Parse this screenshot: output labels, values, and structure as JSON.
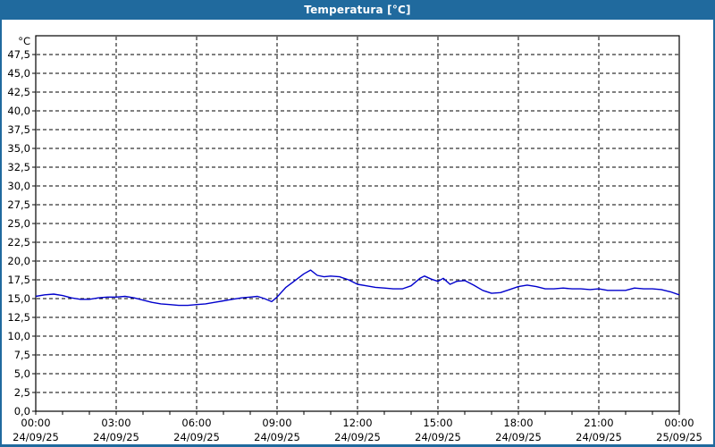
{
  "window": {
    "title": "Temperatura [°C]"
  },
  "colors": {
    "titlebar_bg": "#206a9e",
    "titlebar_text": "#ffffff",
    "window_border": "#206a9e",
    "plot_bg": "#ffffff",
    "line": "#0000cc",
    "grid": "#000000",
    "axis": "#000000",
    "label_text": "#000000"
  },
  "chart_data": {
    "type": "line",
    "title": "Temperatura [°C]",
    "unit_label": "°C",
    "ylim": [
      0,
      50
    ],
    "xlim_hours": [
      0,
      24
    ],
    "grid": "dashed",
    "legend": "none",
    "y_ticks": [
      {
        "v": 0,
        "label": "0,0"
      },
      {
        "v": 2.5,
        "label": "2,5"
      },
      {
        "v": 5,
        "label": "5,0"
      },
      {
        "v": 7.5,
        "label": "7,5"
      },
      {
        "v": 10,
        "label": "10,0"
      },
      {
        "v": 12.5,
        "label": "12,5"
      },
      {
        "v": 15,
        "label": "15,0"
      },
      {
        "v": 17.5,
        "label": "17,5"
      },
      {
        "v": 20,
        "label": "20,0"
      },
      {
        "v": 22.5,
        "label": "22,5"
      },
      {
        "v": 25,
        "label": "25,0"
      },
      {
        "v": 27.5,
        "label": "27,5"
      },
      {
        "v": 30,
        "label": "30,0"
      },
      {
        "v": 32.5,
        "label": "32,5"
      },
      {
        "v": 35,
        "label": "35,0"
      },
      {
        "v": 37.5,
        "label": "37,5"
      },
      {
        "v": 40,
        "label": "40,0"
      },
      {
        "v": 42.5,
        "label": "42,5"
      },
      {
        "v": 45,
        "label": "45,0"
      },
      {
        "v": 47.5,
        "label": "47,5"
      }
    ],
    "x_ticks": [
      {
        "h": 0,
        "time": "00:00",
        "date": "24/09/25"
      },
      {
        "h": 3,
        "time": "03:00",
        "date": "24/09/25"
      },
      {
        "h": 6,
        "time": "06:00",
        "date": "24/09/25"
      },
      {
        "h": 9,
        "time": "09:00",
        "date": "24/09/25"
      },
      {
        "h": 12,
        "time": "12:00",
        "date": "24/09/25"
      },
      {
        "h": 15,
        "time": "15:00",
        "date": "24/09/25"
      },
      {
        "h": 18,
        "time": "18:00",
        "date": "24/09/25"
      },
      {
        "h": 21,
        "time": "21:00",
        "date": "24/09/25"
      },
      {
        "h": 24,
        "time": "00:00",
        "date": "25/09/25"
      }
    ],
    "minor_x_tick_every_hours": 1,
    "series": [
      {
        "name": "Temperatura",
        "points": [
          [
            0,
            15.3
          ],
          [
            0.33,
            15.5
          ],
          [
            0.67,
            15.6
          ],
          [
            1,
            15.4
          ],
          [
            1.33,
            15.1
          ],
          [
            1.67,
            14.9
          ],
          [
            2,
            14.9
          ],
          [
            2.33,
            15.1
          ],
          [
            2.67,
            15.2
          ],
          [
            3,
            15.2
          ],
          [
            3.33,
            15.3
          ],
          [
            3.67,
            15.1
          ],
          [
            4,
            14.8
          ],
          [
            4.33,
            14.5
          ],
          [
            4.67,
            14.3
          ],
          [
            5,
            14.2
          ],
          [
            5.33,
            14.1
          ],
          [
            5.67,
            14.1
          ],
          [
            6,
            14.2
          ],
          [
            6.33,
            14.3
          ],
          [
            6.67,
            14.5
          ],
          [
            7,
            14.7
          ],
          [
            7.33,
            14.9
          ],
          [
            7.67,
            15.1
          ],
          [
            8,
            15.2
          ],
          [
            8.27,
            15.3
          ],
          [
            8.53,
            15.0
          ],
          [
            8.8,
            14.6
          ],
          [
            9,
            15.2
          ],
          [
            9.33,
            16.5
          ],
          [
            9.67,
            17.4
          ],
          [
            10,
            18.3
          ],
          [
            10.25,
            18.8
          ],
          [
            10.5,
            18.1
          ],
          [
            10.75,
            17.9
          ],
          [
            11,
            18.0
          ],
          [
            11.33,
            17.9
          ],
          [
            11.67,
            17.5
          ],
          [
            12,
            16.9
          ],
          [
            12.33,
            16.7
          ],
          [
            12.67,
            16.5
          ],
          [
            13,
            16.4
          ],
          [
            13.33,
            16.3
          ],
          [
            13.67,
            16.3
          ],
          [
            14,
            16.7
          ],
          [
            14.33,
            17.7
          ],
          [
            14.5,
            18.0
          ],
          [
            14.75,
            17.6
          ],
          [
            15,
            17.3
          ],
          [
            15.2,
            17.7
          ],
          [
            15.45,
            16.9
          ],
          [
            15.7,
            17.3
          ],
          [
            16,
            17.4
          ],
          [
            16.33,
            16.8
          ],
          [
            16.67,
            16.1
          ],
          [
            17,
            15.7
          ],
          [
            17.33,
            15.8
          ],
          [
            17.67,
            16.2
          ],
          [
            18,
            16.6
          ],
          [
            18.33,
            16.8
          ],
          [
            18.67,
            16.6
          ],
          [
            19,
            16.3
          ],
          [
            19.33,
            16.3
          ],
          [
            19.67,
            16.4
          ],
          [
            20,
            16.3
          ],
          [
            20.33,
            16.3
          ],
          [
            20.67,
            16.2
          ],
          [
            21,
            16.3
          ],
          [
            21.33,
            16.1
          ],
          [
            21.67,
            16.1
          ],
          [
            22,
            16.1
          ],
          [
            22.33,
            16.4
          ],
          [
            22.67,
            16.3
          ],
          [
            23,
            16.3
          ],
          [
            23.33,
            16.2
          ],
          [
            23.67,
            15.9
          ],
          [
            24,
            15.5
          ]
        ]
      }
    ]
  }
}
